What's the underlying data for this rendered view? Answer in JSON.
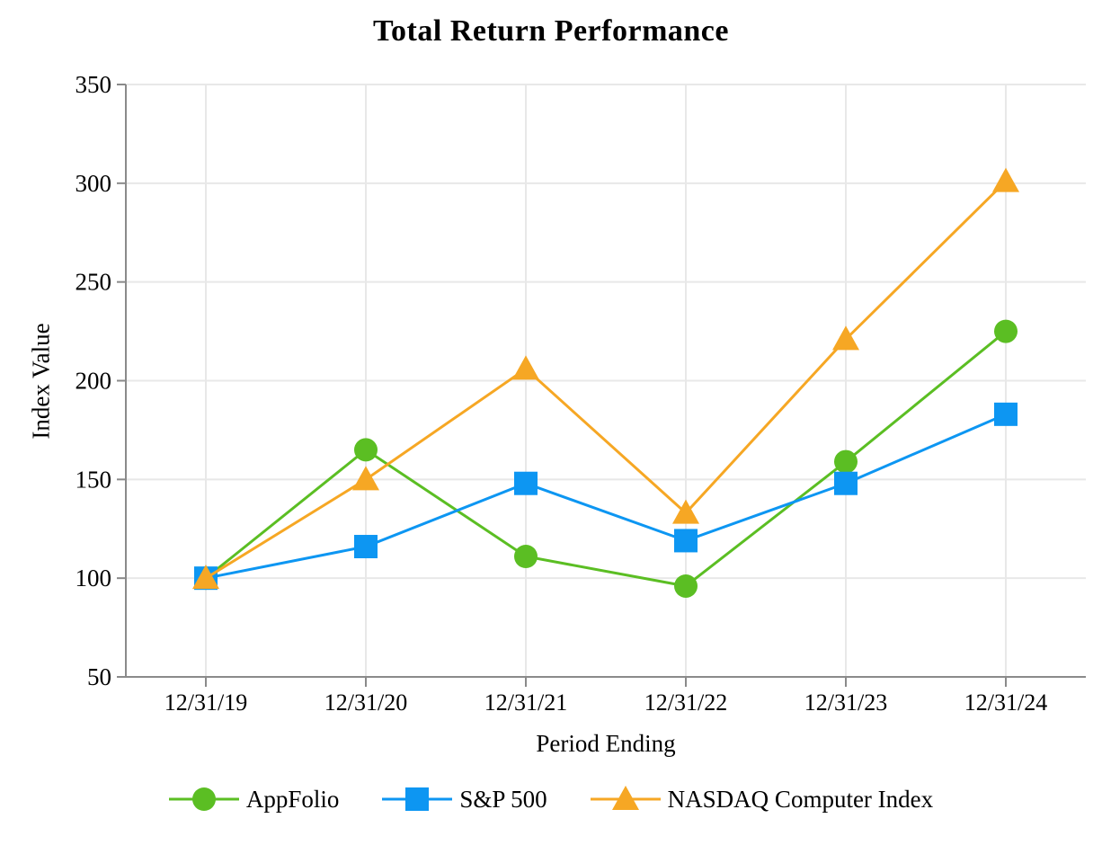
{
  "chart_data": {
    "type": "line",
    "title": "Total Return Performance",
    "xlabel": "Period Ending",
    "ylabel": "Index Value",
    "categories": [
      "12/31/19",
      "12/31/20",
      "12/31/21",
      "12/31/22",
      "12/31/23",
      "12/31/24"
    ],
    "ylim": [
      50,
      350
    ],
    "ytick_step": 50,
    "grid": true,
    "legend_position": "bottom",
    "series": [
      {
        "name": "AppFolio",
        "marker": "circle",
        "color": "#5BBE23",
        "values": [
          100,
          165,
          111,
          96,
          159,
          225
        ]
      },
      {
        "name": "S&P 500",
        "marker": "square",
        "color": "#0D96F2",
        "values": [
          100,
          116,
          148,
          119,
          148,
          183
        ]
      },
      {
        "name": "NASDAQ Computer Index",
        "marker": "triangle",
        "color": "#F6A724",
        "values": [
          100,
          150,
          206,
          133,
          221,
          301
        ]
      }
    ]
  },
  "colors": {
    "axis": "#8A8A8A",
    "grid": "#E8E8E8",
    "text": "#000000",
    "background": "#FFFFFF"
  }
}
